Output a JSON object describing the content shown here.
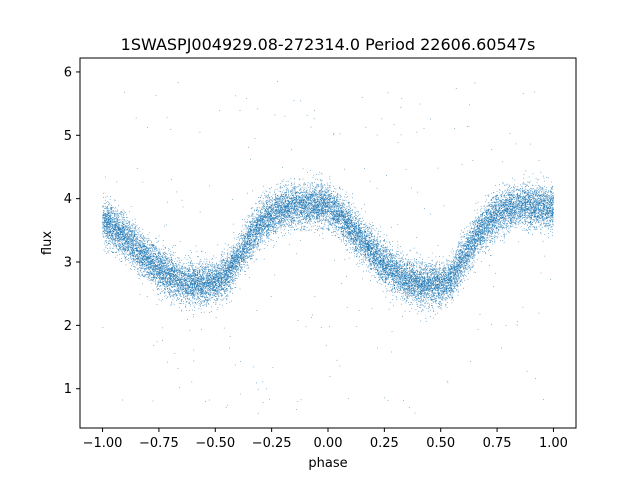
{
  "chart_data": {
    "type": "scatter",
    "title": "1SWASPJ004929.08-272314.0 Period 22606.60547s",
    "xlabel": "phase",
    "ylabel": "flux",
    "xlim": [
      -1.1,
      1.1
    ],
    "ylim": [
      0.38,
      6.22
    ],
    "xticks": [
      -1.0,
      -0.75,
      -0.5,
      -0.25,
      0.0,
      0.25,
      0.5,
      0.75,
      1.0
    ],
    "xtick_labels": [
      "−1.00",
      "−0.75",
      "−0.50",
      "−0.25",
      "0.00",
      "0.25",
      "0.50",
      "0.75",
      "1.00"
    ],
    "yticks": [
      1,
      2,
      3,
      4,
      5,
      6
    ],
    "ytick_labels": [
      "1",
      "2",
      "3",
      "4",
      "5",
      "6"
    ],
    "grid": false,
    "legend": "none",
    "point_color": "#1f77b4",
    "series": [
      {
        "x": [
          -1.0,
          -0.95,
          -0.9,
          -0.85,
          -0.8,
          -0.75,
          -0.7,
          -0.65,
          -0.6,
          -0.55,
          -0.5,
          -0.45,
          -0.4,
          -0.35,
          -0.3,
          -0.25,
          -0.2,
          -0.15,
          -0.1,
          -0.05,
          0.0,
          0.05,
          0.1,
          0.15,
          0.2,
          0.25,
          0.3,
          0.35,
          0.4,
          0.45,
          0.5,
          0.55,
          0.6,
          0.65,
          0.7,
          0.75,
          0.8,
          0.85,
          0.9,
          0.95,
          1.0
        ],
        "y": [
          3.65,
          3.55,
          3.4,
          3.22,
          3.05,
          2.9,
          2.78,
          2.7,
          2.66,
          2.65,
          2.68,
          2.8,
          3.05,
          3.35,
          3.6,
          3.75,
          3.85,
          3.9,
          3.88,
          3.9,
          3.88,
          3.75,
          3.55,
          3.35,
          3.15,
          2.98,
          2.82,
          2.72,
          2.66,
          2.64,
          2.65,
          2.75,
          3.05,
          3.35,
          3.6,
          3.75,
          3.85,
          3.9,
          3.88,
          3.87,
          3.85
        ],
        "spread": 0.3,
        "point_count": 20000,
        "outlier_range": [
          0.6,
          5.9
        ]
      }
    ]
  }
}
